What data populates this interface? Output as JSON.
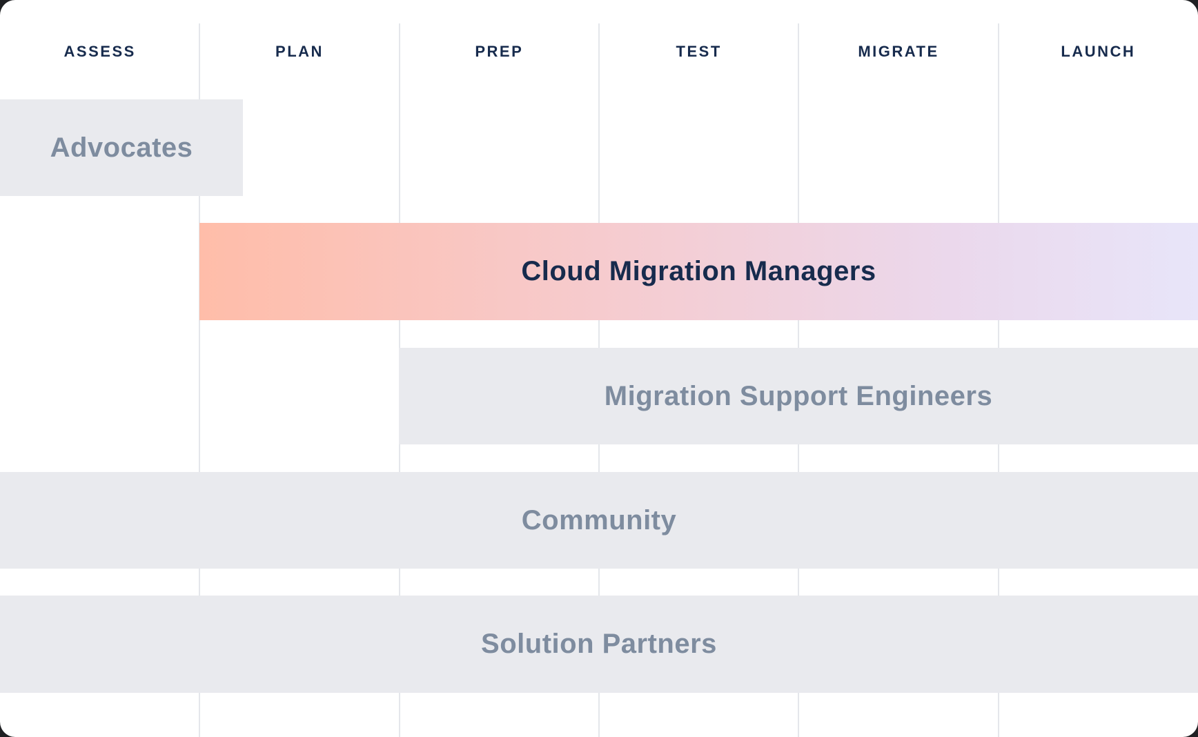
{
  "diagram": {
    "type": "roadmap-swimlane",
    "description": "Cloud migration journey roadmap showing which roles are active during each phase"
  },
  "phases": [
    "ASSESS",
    "PLAN",
    "PREP",
    "TEST",
    "MIGRATE",
    "LAUNCH"
  ],
  "bars": [
    {
      "id": "advocates",
      "label": "Advocates",
      "style": "gray",
      "span": "ASSESS to start of PLAN"
    },
    {
      "id": "cloud-migration-managers",
      "label": "Cloud Migration Managers",
      "style": "gradient",
      "span": "PLAN through LAUNCH"
    },
    {
      "id": "migration-support-engineers",
      "label": "Migration Support Engineers",
      "style": "gray",
      "span": "PREP through LAUNCH"
    },
    {
      "id": "community",
      "label": "Community",
      "style": "gray",
      "span": "all phases"
    },
    {
      "id": "solution-partners",
      "label": "Solution Partners",
      "style": "gray",
      "span": "all phases"
    }
  ],
  "colors": {
    "header_text": "#172B4D",
    "bar_gray": "#E9EAEE",
    "bar_label_gray": "#7E8C9F",
    "bar_label_navy": "#172B4D",
    "divider": "#E4E6EB",
    "gradient_start": "#FFBDA9",
    "gradient_mid1": "#F6CBCE",
    "gradient_mid2": "#EBD8EC",
    "gradient_end": "#E8E5F9",
    "card_bg": "#FFFFFF"
  }
}
